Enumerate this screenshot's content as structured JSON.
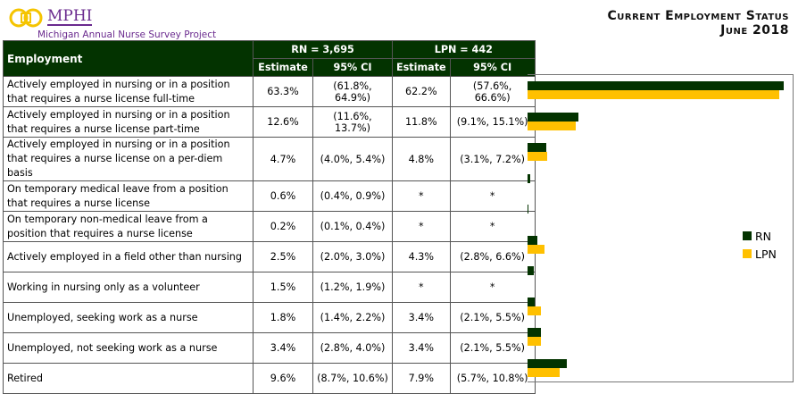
{
  "header": {
    "logo_name": "MPHI",
    "project": "Michigan Annual Nurse Survey Project",
    "title_line1": "Current Employment Status",
    "title_line2": "June 2018"
  },
  "table": {
    "col_employment": "Employment",
    "rn_header": "RN =  3,695",
    "lpn_header": "LPN = 442",
    "estimate": "Estimate",
    "ci": "95% CI",
    "rows": [
      {
        "label": "Actively employed in nursing or in a position that requires a nurse license full-time",
        "rn": "63.3%",
        "rn_ci": "(61.8%, 64.9%)",
        "lpn": "62.2%",
        "lpn_ci": "(57.6%, 66.6%)"
      },
      {
        "label": "Actively employed in nursing or in a position that requires a nurse license part-time",
        "rn": "12.6%",
        "rn_ci": "(11.6%, 13.7%)",
        "lpn": "11.8%",
        "lpn_ci": "(9.1%, 15.1%)"
      },
      {
        "label": "Actively employed in nursing or in a position that requires a nurse license on a per-diem basis",
        "rn": "4.7%",
        "rn_ci": "(4.0%, 5.4%)",
        "lpn": "4.8%",
        "lpn_ci": "(3.1%, 7.2%)"
      },
      {
        "label": "On temporary medical leave from a position that requires a nurse license",
        "rn": "0.6%",
        "rn_ci": "(0.4%, 0.9%)",
        "lpn": "*",
        "lpn_ci": "*"
      },
      {
        "label": "On temporary non-medical leave from a position that requires a nurse license",
        "rn": "0.2%",
        "rn_ci": "(0.1%, 0.4%)",
        "lpn": "*",
        "lpn_ci": "*"
      },
      {
        "label": "Actively employed in a field other than nursing",
        "rn": "2.5%",
        "rn_ci": "(2.0%, 3.0%)",
        "lpn": "4.3%",
        "lpn_ci": "(2.8%, 6.6%)"
      },
      {
        "label": "Working in nursing only as a volunteer",
        "rn": "1.5%",
        "rn_ci": "(1.2%, 1.9%)",
        "lpn": "*",
        "lpn_ci": "*"
      },
      {
        "label": "Unemployed, seeking work as a nurse",
        "rn": "1.8%",
        "rn_ci": "(1.4%, 2.2%)",
        "lpn": "3.4%",
        "lpn_ci": "(2.1%, 5.5%)"
      },
      {
        "label": "Unemployed, not seeking work as a nurse",
        "rn": "3.4%",
        "rn_ci": "(2.8%, 4.0%)",
        "lpn": "3.4%",
        "lpn_ci": "(2.1%, 5.5%)"
      },
      {
        "label": "Retired",
        "rn": "9.6%",
        "rn_ci": "(8.7%, 10.6%)",
        "lpn": "7.9%",
        "lpn_ci": "(5.7%, 10.8%)"
      }
    ]
  },
  "chart_data": {
    "type": "bar",
    "orientation": "horizontal",
    "categories": [
      "Full-time",
      "Part-time",
      "Per-diem",
      "Medical leave",
      "Non-medical leave",
      "Other field",
      "Volunteer",
      "Unemployed seeking",
      "Unemployed not seeking",
      "Retired"
    ],
    "series": [
      {
        "name": "RN",
        "color": "#033300",
        "values": [
          63.3,
          12.6,
          4.7,
          0.6,
          0.2,
          2.5,
          1.5,
          1.8,
          3.4,
          9.6
        ]
      },
      {
        "name": "LPN",
        "color": "#ffc000",
        "values": [
          62.2,
          11.8,
          4.8,
          null,
          null,
          4.3,
          null,
          3.4,
          3.4,
          7.9
        ]
      }
    ],
    "xlim": [
      0,
      65
    ],
    "legend": "right"
  }
}
